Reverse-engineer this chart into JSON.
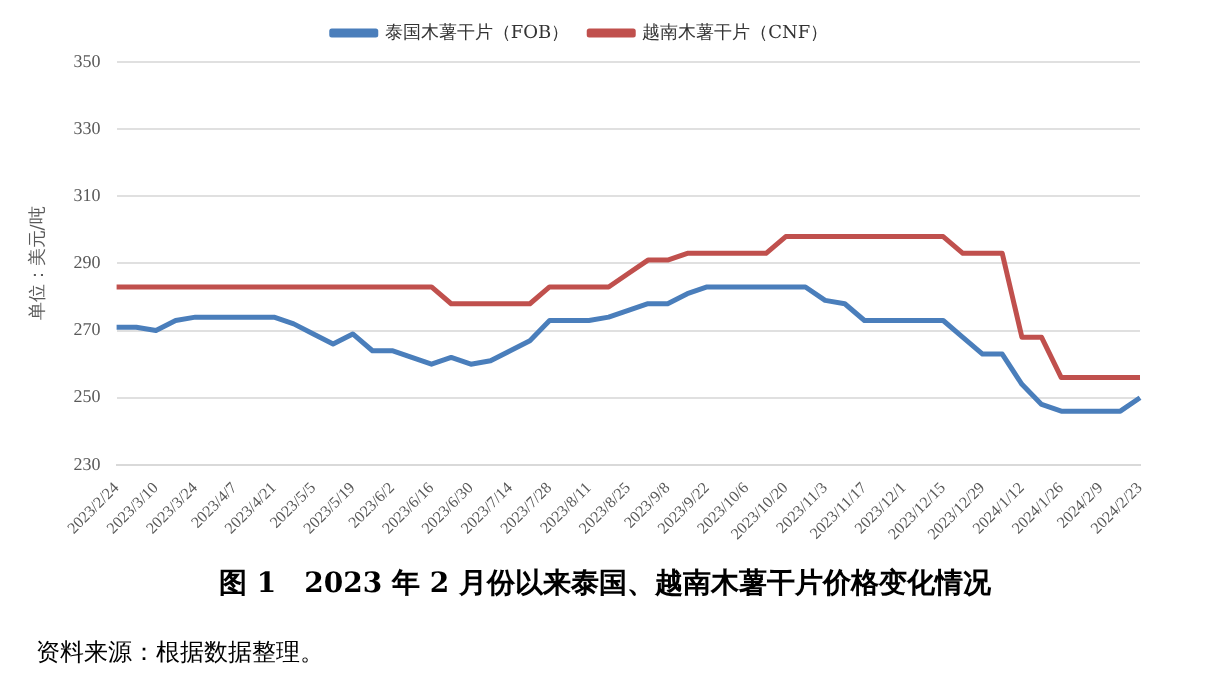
{
  "chart_data": {
    "type": "line",
    "title": "图 1　2023 年 2 月份以来泰国、越南木薯干片价格变化情况",
    "ylabel": "单位：美元/吨",
    "categories": [
      "2023/2/24",
      null,
      "2023/3/10",
      null,
      "2023/3/24",
      null,
      "2023/4/7",
      null,
      "2023/4/21",
      null,
      "2023/5/5",
      null,
      "2023/5/19",
      null,
      "2023/6/2",
      null,
      "2023/6/16",
      null,
      "2023/6/30",
      null,
      "2023/7/14",
      null,
      "2023/7/28",
      null,
      "2023/8/11",
      null,
      "2023/8/25",
      null,
      "2023/9/8",
      null,
      "2023/9/22",
      null,
      "2023/10/6",
      null,
      "2023/10/20",
      null,
      "2023/11/3",
      null,
      "2023/11/17",
      null,
      "2023/12/1",
      null,
      "2023/12/15",
      null,
      "2023/12/29",
      null,
      "2024/1/12",
      null,
      "2024/1/26",
      null,
      "2024/2/9",
      null,
      "2024/2/23"
    ],
    "series": [
      {
        "name": "泰国木薯干片（FOB）",
        "color": "#4a7ebb",
        "values": [
          271,
          271,
          270,
          273,
          274,
          274,
          274,
          274,
          274,
          272,
          269,
          266,
          269,
          264,
          264,
          262,
          260,
          262,
          260,
          261,
          264,
          267,
          273,
          273,
          273,
          274,
          276,
          278,
          278,
          281,
          283,
          283,
          283,
          283,
          283,
          283,
          279,
          278,
          273,
          273,
          273,
          273,
          273,
          268,
          263,
          263,
          254,
          248,
          246,
          246,
          246,
          246,
          250
        ]
      },
      {
        "name": "越南木薯干片（CNF）",
        "color": "#c0504d",
        "values": [
          283,
          283,
          283,
          283,
          283,
          283,
          283,
          283,
          283,
          283,
          283,
          283,
          283,
          283,
          283,
          283,
          283,
          278,
          278,
          278,
          278,
          278,
          283,
          283,
          283,
          283,
          287,
          291,
          291,
          293,
          293,
          293,
          293,
          293,
          298,
          298,
          298,
          298,
          298,
          298,
          298,
          298,
          298,
          293,
          293,
          293,
          268,
          268,
          256,
          256,
          256,
          256,
          256
        ]
      }
    ],
    "ylim": [
      230,
      350
    ],
    "yticks": [
      230,
      250,
      270,
      290,
      310,
      330,
      350
    ],
    "grid": "y",
    "legend": "top",
    "marker": "none",
    "line_style": "solid",
    "annotations": [
      "资料来源：根据数据整理。"
    ]
  }
}
